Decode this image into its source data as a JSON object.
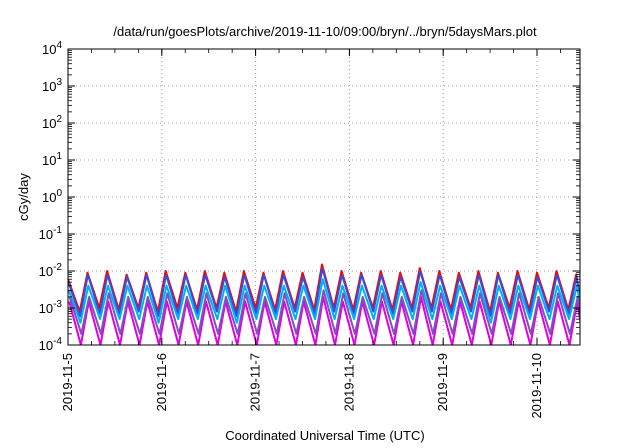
{
  "chart_data": {
    "type": "line",
    "title": "/data/run/goesPlots/archive/2019-11-10/09:00/bryn/../bryn/5daysMars.plot",
    "xlabel": "Coordinated Universal Time (UTC)",
    "ylabel": "cGy/day",
    "yscale": "log",
    "ylim": [
      0.0001,
      10000
    ],
    "xlim": [
      "2019-11-05T00:00",
      "2019-11-10T11:00"
    ],
    "x_ticks": [
      "2019-11-5",
      "2019-11-6",
      "2019-11-7",
      "2019-11-8",
      "2019-11-9",
      "2019-11-10"
    ],
    "y_ticks": [
      {
        "value": 0.0001,
        "mant": "10",
        "exp": "-4"
      },
      {
        "value": 0.001,
        "mant": "10",
        "exp": "-3"
      },
      {
        "value": 0.01,
        "mant": "10",
        "exp": "-2"
      },
      {
        "value": 0.1,
        "mant": "10",
        "exp": "-1"
      },
      {
        "value": 1,
        "mant": "10",
        "exp": "0"
      },
      {
        "value": 10,
        "mant": "10",
        "exp": "1"
      },
      {
        "value": 100,
        "mant": "10",
        "exp": "2"
      },
      {
        "value": 1000,
        "mant": "10",
        "exp": "3"
      },
      {
        "value": 10000,
        "mant": "10",
        "exp": "4"
      }
    ],
    "grid": true,
    "legend": "none",
    "series": [
      {
        "color": "#ff0000",
        "x": [
          "2019-11-05T00:00",
          "2019-11-05T03:00",
          "2019-11-05T05:00",
          "2019-11-05T08:00",
          "2019-11-05T10:00",
          "2019-11-05T13:00",
          "2019-11-05T15:00",
          "2019-11-05T18:00",
          "2019-11-05T20:00",
          "2019-11-05T23:00",
          "2019-11-06T01:00",
          "2019-11-06T04:00",
          "2019-11-06T06:00",
          "2019-11-06T09:00",
          "2019-11-06T11:00",
          "2019-11-06T14:00",
          "2019-11-06T16:00",
          "2019-11-06T19:00",
          "2019-11-06T21:00",
          "2019-11-07T00:00",
          "2019-11-07T02:00",
          "2019-11-07T05:00",
          "2019-11-07T07:00",
          "2019-11-07T10:00",
          "2019-11-07T12:00",
          "2019-11-07T15:00",
          "2019-11-07T17:00",
          "2019-11-07T20:00",
          "2019-11-07T22:00",
          "2019-11-08T01:00",
          "2019-11-08T03:00",
          "2019-11-08T06:00",
          "2019-11-08T08:00",
          "2019-11-08T11:00",
          "2019-11-08T13:00",
          "2019-11-08T16:00",
          "2019-11-08T18:00",
          "2019-11-08T21:00",
          "2019-11-08T23:00",
          "2019-11-09T02:00",
          "2019-11-09T04:00",
          "2019-11-09T07:00",
          "2019-11-09T09:00",
          "2019-11-09T12:00",
          "2019-11-09T14:00",
          "2019-11-09T17:00",
          "2019-11-09T19:00",
          "2019-11-09T22:00",
          "2019-11-10T00:00",
          "2019-11-10T03:00",
          "2019-11-10T05:00",
          "2019-11-10T08:00",
          "2019-11-10T10:00",
          "2019-11-10T11:00"
        ],
        "values": [
          0.006,
          0.0008,
          0.009,
          0.001,
          0.01,
          0.0009,
          0.008,
          0.001,
          0.009,
          0.0008,
          0.01,
          0.001,
          0.009,
          0.0009,
          0.01,
          0.001,
          0.009,
          0.0008,
          0.01,
          0.001,
          0.009,
          0.0009,
          0.01,
          0.001,
          0.009,
          0.0009,
          0.015,
          0.001,
          0.01,
          0.0009,
          0.009,
          0.001,
          0.01,
          0.0009,
          0.009,
          0.001,
          0.012,
          0.001,
          0.01,
          0.0009,
          0.009,
          0.001,
          0.01,
          0.0008,
          0.009,
          0.001,
          0.01,
          0.0009,
          0.009,
          0.001,
          0.01,
          0.0009,
          0.008,
          0.002
        ]
      },
      {
        "color": "#3050e0",
        "x": [
          "2019-11-05T00:00",
          "2019-11-05T03:00",
          "2019-11-05T05:00",
          "2019-11-05T08:00",
          "2019-11-05T10:00",
          "2019-11-05T13:00",
          "2019-11-05T15:00",
          "2019-11-05T18:00",
          "2019-11-05T20:00",
          "2019-11-05T23:00",
          "2019-11-06T01:00",
          "2019-11-06T04:00",
          "2019-11-06T06:00",
          "2019-11-06T09:00",
          "2019-11-06T11:00",
          "2019-11-06T14:00",
          "2019-11-06T16:00",
          "2019-11-06T19:00",
          "2019-11-06T21:00",
          "2019-11-07T00:00",
          "2019-11-07T02:00",
          "2019-11-07T05:00",
          "2019-11-07T07:00",
          "2019-11-07T10:00",
          "2019-11-07T12:00",
          "2019-11-07T15:00",
          "2019-11-07T17:00",
          "2019-11-07T20:00",
          "2019-11-07T22:00",
          "2019-11-08T01:00",
          "2019-11-08T03:00",
          "2019-11-08T06:00",
          "2019-11-08T08:00",
          "2019-11-08T11:00",
          "2019-11-08T13:00",
          "2019-11-08T16:00",
          "2019-11-08T18:00",
          "2019-11-08T21:00",
          "2019-11-08T23:00",
          "2019-11-09T02:00",
          "2019-11-09T04:00",
          "2019-11-09T07:00",
          "2019-11-09T09:00",
          "2019-11-09T12:00",
          "2019-11-09T14:00",
          "2019-11-09T17:00",
          "2019-11-09T19:00",
          "2019-11-09T22:00",
          "2019-11-10T00:00",
          "2019-11-10T03:00",
          "2019-11-10T05:00",
          "2019-11-10T08:00",
          "2019-11-10T10:00",
          "2019-11-10T11:00"
        ],
        "values": [
          0.005,
          0.0006,
          0.008,
          0.0007,
          0.008,
          0.0007,
          0.007,
          0.0008,
          0.008,
          0.0006,
          0.008,
          0.0007,
          0.008,
          0.0007,
          0.008,
          0.0008,
          0.007,
          0.0006,
          0.008,
          0.0007,
          0.008,
          0.0007,
          0.008,
          0.0008,
          0.007,
          0.0007,
          0.012,
          0.0008,
          0.008,
          0.0007,
          0.008,
          0.0008,
          0.008,
          0.0007,
          0.007,
          0.0008,
          0.01,
          0.0008,
          0.008,
          0.0007,
          0.007,
          0.0008,
          0.008,
          0.0006,
          0.008,
          0.0007,
          0.008,
          0.0007,
          0.007,
          0.0008,
          0.008,
          0.0007,
          0.007,
          0.0015
        ]
      },
      {
        "color": "#00b0f0",
        "x": [
          "2019-11-05T00:00",
          "2019-11-05T03:00",
          "2019-11-05T05:00",
          "2019-11-05T08:00",
          "2019-11-05T10:00",
          "2019-11-05T13:00",
          "2019-11-05T15:00",
          "2019-11-05T18:00",
          "2019-11-05T20:00",
          "2019-11-05T23:00",
          "2019-11-06T01:00",
          "2019-11-06T04:00",
          "2019-11-06T06:00",
          "2019-11-06T09:00",
          "2019-11-06T11:00",
          "2019-11-06T14:00",
          "2019-11-06T16:00",
          "2019-11-06T19:00",
          "2019-11-06T21:00",
          "2019-11-07T00:00",
          "2019-11-07T02:00",
          "2019-11-07T05:00",
          "2019-11-07T07:00",
          "2019-11-07T10:00",
          "2019-11-07T12:00",
          "2019-11-07T15:00",
          "2019-11-07T17:00",
          "2019-11-07T20:00",
          "2019-11-07T22:00",
          "2019-11-08T01:00",
          "2019-11-08T03:00",
          "2019-11-08T06:00",
          "2019-11-08T08:00",
          "2019-11-08T11:00",
          "2019-11-08T13:00",
          "2019-11-08T16:00",
          "2019-11-08T18:00",
          "2019-11-08T21:00",
          "2019-11-08T23:00",
          "2019-11-09T02:00",
          "2019-11-09T04:00",
          "2019-11-09T07:00",
          "2019-11-09T09:00",
          "2019-11-09T12:00",
          "2019-11-09T14:00",
          "2019-11-09T17:00",
          "2019-11-09T19:00",
          "2019-11-09T22:00",
          "2019-11-10T00:00",
          "2019-11-10T03:00",
          "2019-11-10T05:00",
          "2019-11-10T08:00",
          "2019-11-10T10:00",
          "2019-11-10T11:00"
        ],
        "values": [
          0.003,
          0.0004,
          0.004,
          0.0005,
          0.004,
          0.0005,
          0.004,
          0.0005,
          0.004,
          0.0004,
          0.004,
          0.0005,
          0.004,
          0.0005,
          0.004,
          0.0005,
          0.004,
          0.0004,
          0.004,
          0.0005,
          0.004,
          0.0005,
          0.004,
          0.0005,
          0.004,
          0.0005,
          0.006,
          0.0005,
          0.004,
          0.0005,
          0.004,
          0.0005,
          0.004,
          0.0005,
          0.004,
          0.0005,
          0.005,
          0.0005,
          0.004,
          0.0005,
          0.004,
          0.0005,
          0.004,
          0.0004,
          0.004,
          0.0005,
          0.004,
          0.0005,
          0.004,
          0.0005,
          0.004,
          0.0005,
          0.004,
          0.001
        ]
      },
      {
        "color": "#e000e0",
        "x": [
          "2019-11-05T00:00",
          "2019-11-05T03:00",
          "2019-11-05T05:00",
          "2019-11-05T08:00",
          "2019-11-05T10:00",
          "2019-11-05T13:00",
          "2019-11-05T15:00",
          "2019-11-05T18:00",
          "2019-11-05T20:00",
          "2019-11-05T23:00",
          "2019-11-06T01:00",
          "2019-11-06T04:00",
          "2019-11-06T06:00",
          "2019-11-06T09:00",
          "2019-11-06T11:00",
          "2019-11-06T14:00",
          "2019-11-06T16:00",
          "2019-11-06T19:00",
          "2019-11-06T21:00",
          "2019-11-07T00:00",
          "2019-11-07T02:00",
          "2019-11-07T05:00",
          "2019-11-07T07:00",
          "2019-11-07T10:00",
          "2019-11-07T12:00",
          "2019-11-07T15:00",
          "2019-11-07T17:00",
          "2019-11-07T20:00",
          "2019-11-07T22:00",
          "2019-11-08T01:00",
          "2019-11-08T03:00",
          "2019-11-08T06:00",
          "2019-11-08T08:00",
          "2019-11-08T11:00",
          "2019-11-08T13:00",
          "2019-11-08T16:00",
          "2019-11-08T18:00",
          "2019-11-08T21:00",
          "2019-11-08T23:00",
          "2019-11-09T02:00",
          "2019-11-09T04:00",
          "2019-11-09T07:00",
          "2019-11-09T09:00",
          "2019-11-09T12:00",
          "2019-11-09T14:00",
          "2019-11-09T17:00",
          "2019-11-09T19:00",
          "2019-11-09T22:00",
          "2019-11-10T00:00",
          "2019-11-10T03:00",
          "2019-11-10T05:00",
          "2019-11-10T08:00",
          "2019-11-10T10:00",
          "2019-11-10T11:00"
        ],
        "values": [
          0.0015,
          0.0001,
          0.0015,
          0.0001,
          0.0015,
          0.0001,
          0.0015,
          0.0001,
          0.0015,
          0.0001,
          0.0015,
          0.0001,
          0.0015,
          0.0001,
          0.0015,
          0.0001,
          0.0015,
          0.0001,
          0.0015,
          0.0001,
          0.0015,
          0.0001,
          0.0015,
          0.0001,
          0.0015,
          0.0001,
          0.002,
          0.0001,
          0.0015,
          0.0001,
          0.0015,
          0.0001,
          0.0015,
          0.0001,
          0.0015,
          0.0001,
          0.002,
          0.0001,
          0.0015,
          0.0001,
          0.0015,
          0.0001,
          0.0015,
          0.0001,
          0.0015,
          0.0001,
          0.0015,
          0.0001,
          0.0015,
          0.0001,
          0.0015,
          0.0001,
          0.0015,
          0.0003
        ]
      },
      {
        "color": "#8050c0",
        "x": [
          "2019-11-05T00:00",
          "2019-11-05T03:00",
          "2019-11-05T05:00",
          "2019-11-05T08:00",
          "2019-11-05T10:00",
          "2019-11-05T13:00",
          "2019-11-05T15:00",
          "2019-11-05T18:00",
          "2019-11-05T20:00",
          "2019-11-05T23:00",
          "2019-11-06T01:00",
          "2019-11-06T04:00",
          "2019-11-06T06:00",
          "2019-11-06T09:00",
          "2019-11-06T11:00",
          "2019-11-06T14:00",
          "2019-11-06T16:00",
          "2019-11-06T19:00",
          "2019-11-06T21:00",
          "2019-11-07T00:00",
          "2019-11-07T02:00",
          "2019-11-07T05:00",
          "2019-11-07T07:00",
          "2019-11-07T10:00",
          "2019-11-07T12:00",
          "2019-11-07T15:00",
          "2019-11-07T17:00",
          "2019-11-07T20:00",
          "2019-11-07T22:00",
          "2019-11-08T01:00",
          "2019-11-08T03:00",
          "2019-11-08T06:00",
          "2019-11-08T08:00",
          "2019-11-08T11:00",
          "2019-11-08T13:00",
          "2019-11-08T16:00",
          "2019-11-08T18:00",
          "2019-11-08T21:00",
          "2019-11-08T23:00",
          "2019-11-09T02:00",
          "2019-11-09T04:00",
          "2019-11-09T07:00",
          "2019-11-09T09:00",
          "2019-11-09T12:00",
          "2019-11-09T14:00",
          "2019-11-09T17:00",
          "2019-11-09T19:00",
          "2019-11-09T22:00",
          "2019-11-10T00:00",
          "2019-11-10T03:00",
          "2019-11-10T05:00",
          "2019-11-10T08:00",
          "2019-11-10T10:00",
          "2019-11-10T11:00"
        ],
        "values": [
          0.002,
          0.0002,
          0.002,
          0.0002,
          0.0025,
          0.0002,
          0.002,
          0.0002,
          0.002,
          0.0002,
          0.0025,
          0.0002,
          0.002,
          0.0002,
          0.0025,
          0.0002,
          0.002,
          0.0002,
          0.0025,
          0.0002,
          0.002,
          0.0002,
          0.0025,
          0.0002,
          0.002,
          0.0002,
          0.003,
          0.0002,
          0.0025,
          0.0002,
          0.002,
          0.0002,
          0.0025,
          0.0002,
          0.002,
          0.0002,
          0.003,
          0.0002,
          0.0025,
          0.0002,
          0.002,
          0.0002,
          0.0025,
          0.0002,
          0.002,
          0.0002,
          0.0025,
          0.0002,
          0.002,
          0.0002,
          0.0025,
          0.0002,
          0.002,
          0.0005
        ]
      }
    ]
  }
}
